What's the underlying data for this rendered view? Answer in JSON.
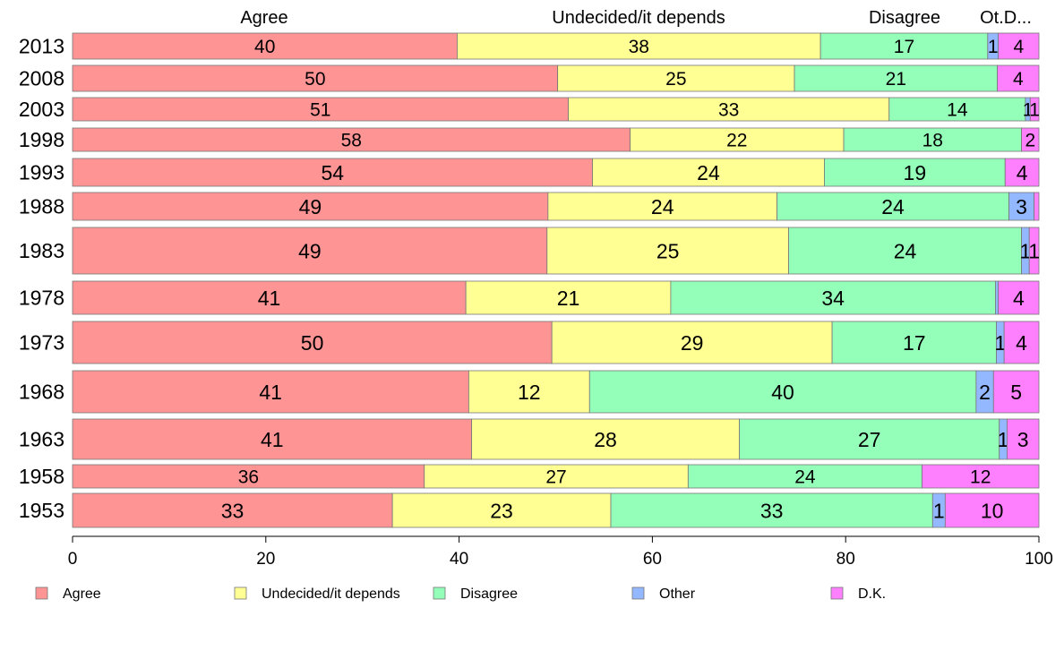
{
  "chart_data": {
    "type": "bar",
    "orientation": "horizontal",
    "stacked": true,
    "categories": [
      "2013",
      "2008",
      "2003",
      "1998",
      "1993",
      "1988",
      "1983",
      "1978",
      "1973",
      "1968",
      "1963",
      "1958",
      "1953"
    ],
    "top_labels": [
      "Agree",
      "Undecided/it depends",
      "Disagree",
      "Ot.D..."
    ],
    "xlim": [
      0,
      100
    ],
    "xticks": [
      "0",
      "20",
      "40",
      "60",
      "80",
      "100"
    ],
    "grid": false,
    "legend_position": "bottom",
    "series": [
      {
        "name": "Agree",
        "color": "#ff9494",
        "values": [
          39.8,
          50.2,
          51.3,
          57.7,
          53.8,
          49.2,
          49.1,
          40.7,
          49.6,
          41.0,
          41.3,
          36.4,
          33.1
        ],
        "labels": [
          "40",
          "50",
          "51",
          "58",
          "54",
          "49",
          "49",
          "41",
          "50",
          "41",
          "41",
          "36",
          "33"
        ]
      },
      {
        "name": "Undecided/it depends",
        "color": "#ffff94",
        "values": [
          37.6,
          24.5,
          33.2,
          22.1,
          24.0,
          23.7,
          25.0,
          21.2,
          29.0,
          12.5,
          27.7,
          27.3,
          22.6
        ],
        "labels": [
          "38",
          "25",
          "33",
          "22",
          "24",
          "24",
          "25",
          "21",
          "29",
          "12",
          "28",
          "27",
          "23"
        ]
      },
      {
        "name": "Disagree",
        "color": "#94ffb8",
        "values": [
          17.3,
          21.0,
          14.1,
          18.4,
          18.7,
          24.0,
          24.1,
          33.6,
          17.0,
          40.0,
          26.9,
          24.2,
          33.3
        ],
        "labels": [
          "17",
          "21",
          "14",
          "18",
          "19",
          "24",
          "24",
          "34",
          "17",
          "40",
          "27",
          "24",
          "33"
        ]
      },
      {
        "name": "Other",
        "color": "#94b8ff",
        "values": [
          1.1,
          0.0,
          0.5,
          0.0,
          0.0,
          2.6,
          0.8,
          0.3,
          0.8,
          1.8,
          0.8,
          0.0,
          1.3
        ],
        "labels": [
          "1",
          "",
          "1",
          "",
          "",
          "3",
          "1",
          "",
          "1",
          "2",
          "1",
          "",
          "1"
        ]
      },
      {
        "name": "D.K.",
        "color": "#ff80ff",
        "values": [
          4.2,
          4.3,
          0.9,
          1.8,
          3.5,
          0.5,
          1.0,
          4.2,
          3.6,
          4.7,
          3.3,
          12.1,
          9.7
        ],
        "labels": [
          "4",
          "4",
          "1",
          "2",
          "4",
          "",
          "1",
          "4",
          "4",
          "5",
          "3",
          "12",
          "10"
        ]
      }
    ]
  }
}
